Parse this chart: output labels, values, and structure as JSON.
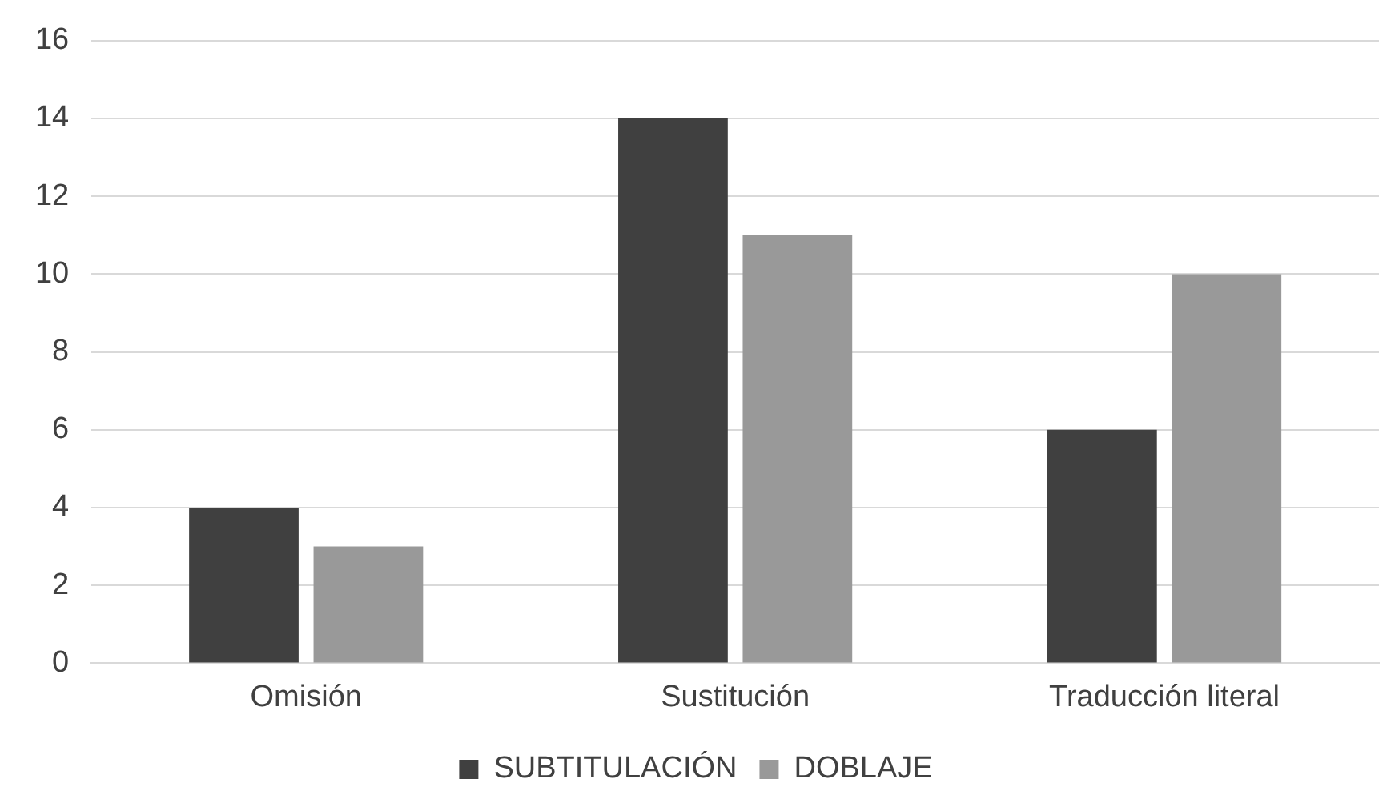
{
  "chart_data": {
    "type": "bar",
    "categories": [
      "Omisión",
      "Sustitución",
      "Traducción literal"
    ],
    "series": [
      {
        "name": "SUBTITULACIÓN",
        "color": "#404040",
        "values": [
          4,
          14,
          6
        ]
      },
      {
        "name": "DOBLAJE",
        "color": "#999999",
        "values": [
          3,
          11,
          10
        ]
      }
    ],
    "ylim": [
      0,
      16
    ],
    "yticks": [
      0,
      2,
      4,
      6,
      8,
      10,
      12,
      14,
      16
    ],
    "grid": "y",
    "legend": "bottom"
  }
}
